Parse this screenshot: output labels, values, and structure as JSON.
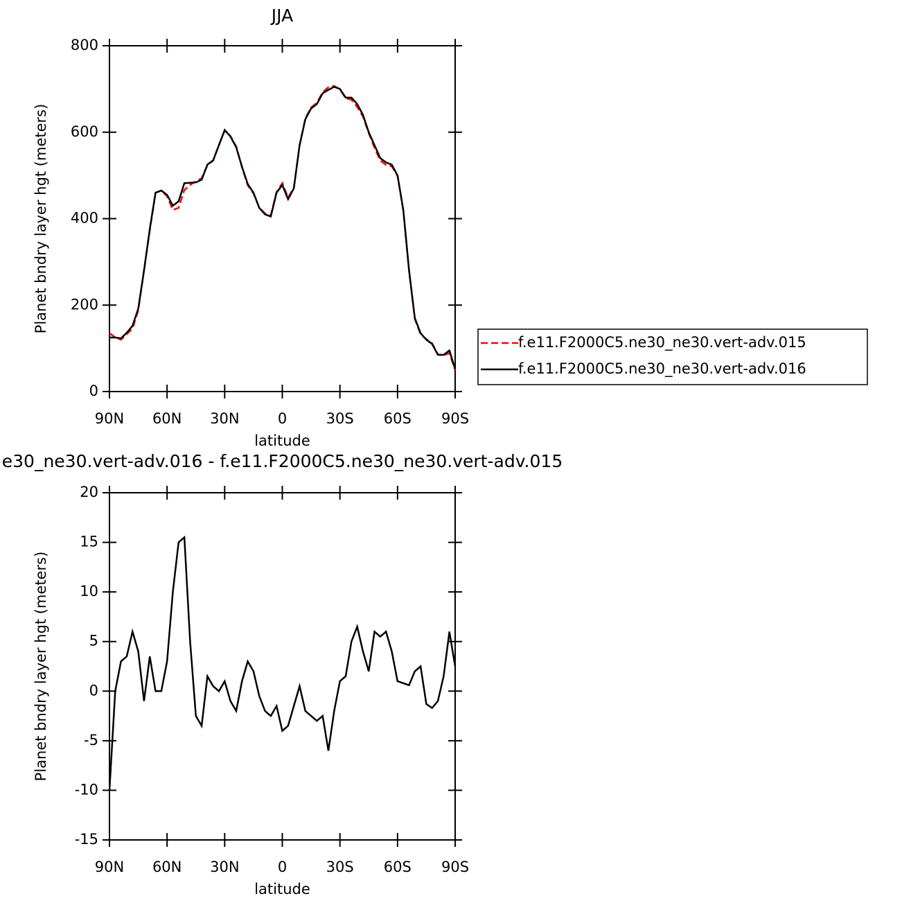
{
  "chart_data": [
    {
      "type": "line",
      "title": "JJA",
      "xlabel": "latitude",
      "ylabel": "Planet bndry layer hgt (meters)",
      "x": [
        90,
        87,
        84,
        81,
        78,
        75,
        72,
        69,
        66,
        63,
        60,
        57,
        54,
        51,
        48,
        45,
        42,
        39,
        36,
        33,
        30,
        27,
        24,
        21,
        18,
        15,
        12,
        9,
        6,
        3,
        0,
        -3,
        -6,
        -9,
        -12,
        -15,
        -18,
        -21,
        -24,
        -27,
        -30,
        -33,
        -36,
        -39,
        -42,
        -45,
        -48,
        -51,
        -54,
        -57,
        -60,
        -63,
        -66,
        -69,
        -72,
        -75,
        -78,
        -81,
        -84,
        -87,
        -90
      ],
      "series": [
        {
          "name": "f.e11.F2000C5.ne30_ne30.vert-adv.015",
          "color": "#ff0000",
          "line_style": "dashed",
          "values": [
            135,
            125,
            120,
            132.5,
            146,
            188,
            281,
            372.5,
            460,
            465,
            452,
            420,
            425,
            466.5,
            478,
            486.5,
            493.5,
            523.5,
            534.5,
            570,
            604,
            591,
            567,
            519,
            477,
            458,
            425.5,
            412,
            407.5,
            461.5,
            482,
            448.5,
            471.5,
            569.5,
            632,
            657.5,
            668,
            692.5,
            704,
            707,
            699,
            678.5,
            675,
            658.5,
            636,
            598,
            564,
            534.5,
            524,
            521,
            499,
            419.2,
            279.4,
            168,
            132.5,
            121.3,
            111.7,
            86,
            83.5,
            89,
            49.5
          ]
        },
        {
          "name": "f.e11.F2000C5.ne30_ne30.vert-adv.016",
          "color": "#000000",
          "line_style": "solid",
          "values": [
            125,
            125,
            123,
            136,
            152,
            192,
            280,
            376,
            460,
            465,
            455,
            430,
            440,
            482,
            483,
            484,
            490,
            525,
            535,
            570,
            605,
            590,
            565,
            520,
            480,
            460,
            425,
            410,
            405,
            460,
            478,
            445,
            470,
            570,
            630,
            655,
            665,
            690,
            698,
            705,
            700,
            680,
            680,
            665,
            640,
            600,
            570,
            540,
            530,
            525,
            500,
            420,
            280,
            170,
            135,
            120,
            110,
            85,
            85,
            95,
            52
          ]
        }
      ],
      "xlim": [
        90,
        -90
      ],
      "xticks": [
        {
          "value": 90,
          "label": "90N"
        },
        {
          "value": 60,
          "label": "60N"
        },
        {
          "value": 30,
          "label": "30N"
        },
        0,
        {
          "value": -30,
          "label": "30S"
        },
        {
          "value": -60,
          "label": "60S"
        },
        {
          "value": -90,
          "label": "90S"
        }
      ],
      "ylim": [
        0,
        800
      ],
      "yticks": [
        0,
        200,
        400,
        600,
        800
      ],
      "legend": "outside-right"
    },
    {
      "type": "line",
      "title": "e30_ne30.vert-adv.016 - f.e11.F2000C5.ne30_ne30.vert-adv.015",
      "xlabel": "latitude",
      "ylabel": "Planet bndry layer hgt (meters)",
      "x": [
        90,
        87,
        84,
        81,
        78,
        75,
        72,
        69,
        66,
        63,
        60,
        57,
        54,
        51,
        48,
        45,
        42,
        39,
        36,
        33,
        30,
        27,
        24,
        21,
        18,
        15,
        12,
        9,
        6,
        3,
        0,
        -3,
        -6,
        -9,
        -12,
        -15,
        -18,
        -21,
        -24,
        -27,
        -30,
        -33,
        -36,
        -39,
        -42,
        -45,
        -48,
        -51,
        -54,
        -57,
        -60,
        -63,
        -66,
        -69,
        -72,
        -75,
        -78,
        -81,
        -84,
        -87,
        -90
      ],
      "series": [
        {
          "color": "#000000",
          "line_style": "solid",
          "values": [
            -10,
            0,
            3,
            3.5,
            6,
            4,
            -1,
            3.5,
            0,
            0,
            3,
            10,
            15,
            15.5,
            5,
            -2.5,
            -3.5,
            1.5,
            0.5,
            0,
            1,
            -1,
            -2,
            1,
            3,
            2,
            -0.5,
            -2,
            -2.5,
            -1.5,
            -4,
            -3.5,
            -1.5,
            0.5,
            -2,
            -2.5,
            -3,
            -2.5,
            -6,
            -2,
            1,
            1.5,
            5,
            6.5,
            4,
            2,
            6,
            5.5,
            6,
            4,
            1,
            0.8,
            0.6,
            2,
            2.5,
            -1.3,
            -1.7,
            -1,
            1.5,
            6,
            2.5
          ]
        }
      ],
      "xlim": [
        90,
        -90
      ],
      "xticks": [
        {
          "value": 90,
          "label": "90N"
        },
        {
          "value": 60,
          "label": "60N"
        },
        {
          "value": 30,
          "label": "30N"
        },
        0,
        {
          "value": -30,
          "label": "30S"
        },
        {
          "value": -60,
          "label": "60S"
        },
        {
          "value": -90,
          "label": "90S"
        }
      ],
      "ylim": [
        -15,
        20
      ],
      "yticks": [
        -15,
        -10,
        -5,
        0,
        5,
        10,
        15,
        20
      ]
    }
  ]
}
